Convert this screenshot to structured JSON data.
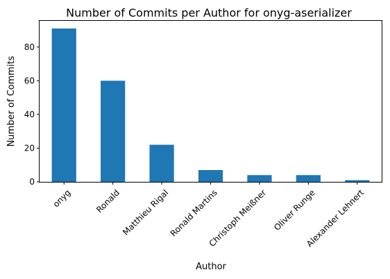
{
  "chart_data": {
    "type": "bar",
    "title": "Number of Commits per Author for onyg-aserializer",
    "xlabel": "Author",
    "ylabel": "Number of Commits",
    "categories": [
      "onyg",
      "Ronald",
      "Matthieu Rigal",
      "Ronald Martins",
      "Christoph Meißner",
      "Oliver Runge",
      "Alexander Lehnert"
    ],
    "values": [
      91,
      60,
      22,
      7,
      4,
      4,
      1
    ],
    "ylim": [
      0,
      95.55
    ],
    "yticks": [
      0,
      20,
      40,
      60,
      80
    ],
    "bar_color": "#1f77b4",
    "grid": false,
    "legend": "none"
  }
}
